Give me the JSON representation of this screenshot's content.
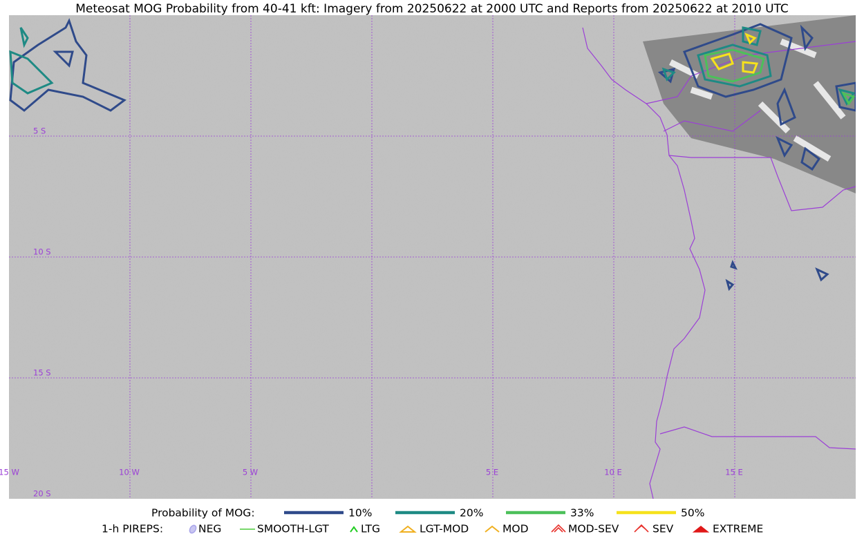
{
  "header": {
    "title": "Meteosat MOG Probability from 40-41 kft: Imagery from 20250622 at 2000 UTC and Reports from 20250622 at 2010 UTC"
  },
  "map": {
    "lat_labels": [
      "5 S",
      "10 S",
      "15 S",
      "20 S"
    ],
    "lon_labels": [
      "15 W",
      "10 W",
      "5 W",
      "5 E",
      "10 E",
      "15 E"
    ],
    "grid_color": "#9b3fd6"
  },
  "legend": {
    "probability_title": "Probability of MOG:",
    "probability": [
      {
        "label": "10%",
        "color": "#2f4a8a"
      },
      {
        "label": "20%",
        "color": "#1e8a84"
      },
      {
        "label": "33%",
        "color": "#4cc05a"
      },
      {
        "label": "50%",
        "color": "#f6e21c"
      }
    ],
    "pireps_title": "1-h PIREPS:",
    "pireps": [
      "NEG",
      "SMOOTH-LGT",
      "LTG",
      "LGT-MOD",
      "MOD",
      "MOD-SEV",
      "SEV",
      "EXTREME"
    ]
  }
}
